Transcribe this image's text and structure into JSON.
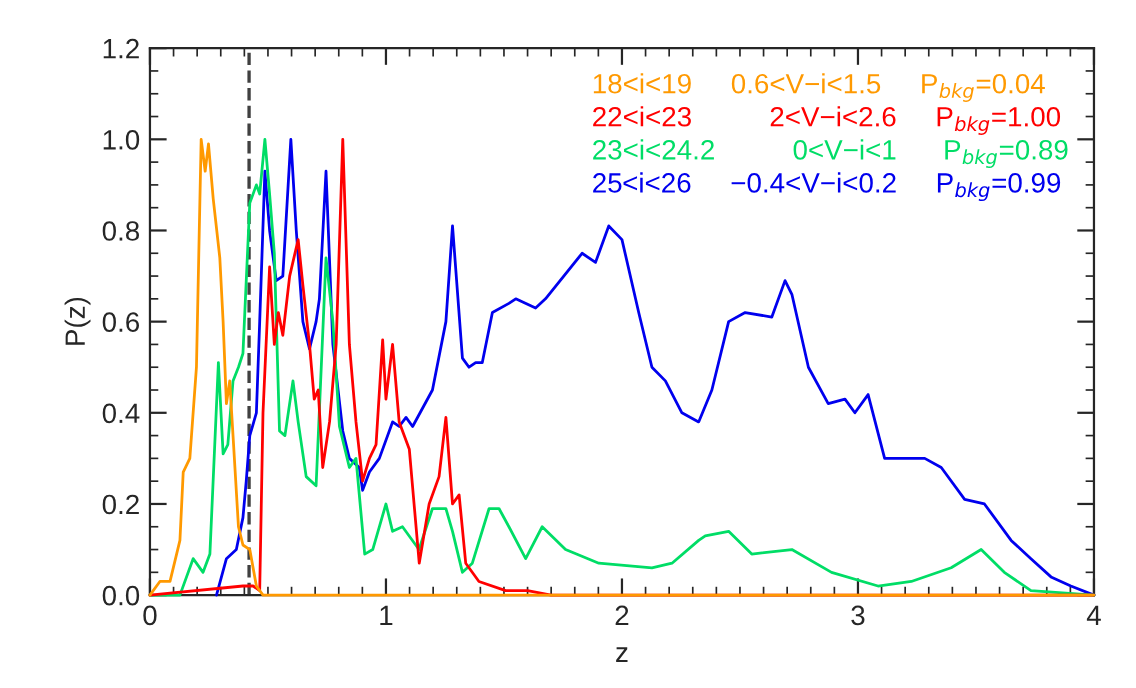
{
  "chart_data": {
    "type": "line",
    "xlabel": "z",
    "ylabel": "P(z)",
    "xlim": [
      0,
      4
    ],
    "xticks": [
      0,
      1,
      2,
      3,
      4
    ],
    "ylim": [
      0,
      1.2
    ],
    "yticks": [
      {
        "value": 0,
        "label": "0.0"
      },
      {
        "value": 0.2,
        "label": "0.2"
      },
      {
        "value": 0.4,
        "label": "0.4"
      },
      {
        "value": 0.6,
        "label": "0.6"
      },
      {
        "value": 0.8,
        "label": "0.8"
      },
      {
        "value": 1.0,
        "label": "1.0"
      },
      {
        "value": 1.2,
        "label": "1.2"
      }
    ],
    "grid": false,
    "legend": "top right",
    "line_style": "solid",
    "marker": "none",
    "ref_lines": [
      {
        "axis": "x",
        "value": 0.42,
        "label": null,
        "color": "#404040",
        "line_style": "dashed"
      }
    ],
    "series": [
      {
        "name": "18<i<19     0.6<V−i<1.5     P$_{bkg}$=0.04",
        "color": "#ff9900",
        "x": [
          0,
          0.042,
          0.085,
          0.127,
          0.141,
          0.169,
          0.197,
          0.217,
          0.234,
          0.248,
          0.268,
          0.296,
          0.31,
          0.324,
          0.338,
          0.352,
          0.375,
          0.394,
          0.423,
          0.451,
          0.479,
          1.0,
          2.0,
          3.0,
          4.0
        ],
        "values": [
          0,
          0.03,
          0.03,
          0.12,
          0.27,
          0.3,
          0.5,
          1.0,
          0.93,
          0.99,
          0.87,
          0.74,
          0.6,
          0.42,
          0.47,
          0.35,
          0.15,
          0.11,
          0.1,
          0.02,
          0,
          0,
          0,
          0,
          0
        ]
      },
      {
        "name": "22<i<23          2<V−i<2.6     P$_{bkg}$=1.00",
        "color": "#ff0000",
        "x": [
          0,
          0.394,
          0.437,
          0.465,
          0.479,
          0.507,
          0.527,
          0.544,
          0.563,
          0.592,
          0.628,
          0.648,
          0.676,
          0.696,
          0.713,
          0.732,
          0.761,
          0.789,
          0.817,
          0.845,
          0.873,
          0.901,
          0.93,
          0.958,
          0.986,
          1.0,
          1.028,
          1.056,
          1.099,
          1.141,
          1.183,
          1.225,
          1.254,
          1.282,
          1.31,
          1.338,
          1.394,
          1.507,
          1.563,
          1.6,
          1.7,
          4.0
        ],
        "values": [
          0,
          0.02,
          0.02,
          0.01,
          0.4,
          0.72,
          0.55,
          0.62,
          0.57,
          0.7,
          0.78,
          0.68,
          0.55,
          0.43,
          0.45,
          0.28,
          0.38,
          0.55,
          1.0,
          0.55,
          0.38,
          0.25,
          0.3,
          0.33,
          0.56,
          0.43,
          0.55,
          0.38,
          0.32,
          0.07,
          0.2,
          0.26,
          0.39,
          0.2,
          0.22,
          0.07,
          0.03,
          0.01,
          0.01,
          0.01,
          0,
          0
        ]
      },
      {
        "name": "23<i<24.2          0<V−i<1      P$_{bkg}$=0.89",
        "color": "#00dd66",
        "x": [
          0,
          0.127,
          0.183,
          0.225,
          0.254,
          0.29,
          0.31,
          0.33,
          0.352,
          0.375,
          0.394,
          0.423,
          0.451,
          0.465,
          0.487,
          0.507,
          0.527,
          0.549,
          0.572,
          0.606,
          0.628,
          0.662,
          0.704,
          0.746,
          0.775,
          0.803,
          0.845,
          0.873,
          0.91,
          0.944,
          1.0,
          1.028,
          1.07,
          1.14,
          1.197,
          1.254,
          1.282,
          1.324,
          1.366,
          1.437,
          1.479,
          1.521,
          1.592,
          1.662,
          1.761,
          1.902,
          2.127,
          2.212,
          2.325,
          2.353,
          2.452,
          2.55,
          2.72,
          2.888,
          3.085,
          3.226,
          3.395,
          3.522,
          3.62,
          3.733,
          4.0
        ],
        "values": [
          0,
          0,
          0.08,
          0.05,
          0.09,
          0.51,
          0.31,
          0.33,
          0.47,
          0.5,
          0.53,
          0.86,
          0.9,
          0.88,
          1.0,
          0.88,
          0.75,
          0.36,
          0.35,
          0.47,
          0.38,
          0.26,
          0.24,
          0.74,
          0.6,
          0.37,
          0.28,
          0.3,
          0.09,
          0.1,
          0.2,
          0.14,
          0.15,
          0.1,
          0.19,
          0.19,
          0.14,
          0.05,
          0.07,
          0.19,
          0.19,
          0.15,
          0.08,
          0.15,
          0.1,
          0.07,
          0.06,
          0.07,
          0.12,
          0.13,
          0.14,
          0.09,
          0.1,
          0.05,
          0.02,
          0.03,
          0.06,
          0.1,
          0.05,
          0.01,
          0
        ]
      },
      {
        "name": "25<i<26     −0.4<V−i<0.2     P$_{bkg}$=0.99",
        "color": "#0000ee",
        "x": [
          0.282,
          0.324,
          0.366,
          0.394,
          0.408,
          0.423,
          0.451,
          0.465,
          0.487,
          0.507,
          0.535,
          0.563,
          0.597,
          0.62,
          0.648,
          0.676,
          0.704,
          0.718,
          0.746,
          0.775,
          0.817,
          0.845,
          0.887,
          0.901,
          0.93,
          0.972,
          1.028,
          1.056,
          1.085,
          1.113,
          1.197,
          1.254,
          1.282,
          1.324,
          1.352,
          1.38,
          1.408,
          1.451,
          1.521,
          1.55,
          1.634,
          1.676,
          1.831,
          1.888,
          1.944,
          2.0,
          2.071,
          2.127,
          2.184,
          2.254,
          2.325,
          2.381,
          2.452,
          2.522,
          2.635,
          2.691,
          2.72,
          2.79,
          2.874,
          2.945,
          2.987,
          3.043,
          3.113,
          3.283,
          3.353,
          3.452,
          3.536,
          3.649,
          3.733,
          3.818,
          3.902,
          4.0
        ],
        "values": [
          0,
          0.08,
          0.1,
          0.17,
          0.25,
          0.35,
          0.4,
          0.6,
          0.93,
          0.8,
          0.69,
          0.7,
          1.0,
          0.8,
          0.6,
          0.54,
          0.6,
          0.65,
          0.93,
          0.55,
          0.36,
          0.3,
          0.28,
          0.23,
          0.27,
          0.3,
          0.38,
          0.37,
          0.39,
          0.37,
          0.45,
          0.6,
          0.81,
          0.52,
          0.5,
          0.51,
          0.51,
          0.62,
          0.64,
          0.65,
          0.63,
          0.65,
          0.75,
          0.73,
          0.81,
          0.78,
          0.62,
          0.5,
          0.47,
          0.4,
          0.38,
          0.45,
          0.6,
          0.62,
          0.61,
          0.69,
          0.66,
          0.5,
          0.42,
          0.43,
          0.4,
          0.44,
          0.3,
          0.3,
          0.28,
          0.21,
          0.2,
          0.12,
          0.08,
          0.04,
          0.02,
          0
        ]
      }
    ]
  }
}
